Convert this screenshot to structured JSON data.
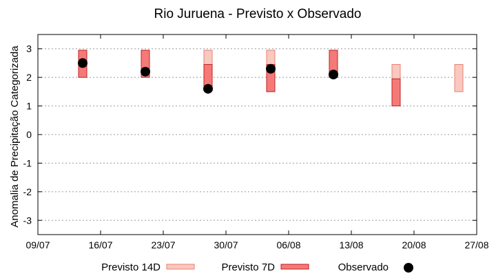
{
  "chart_data": {
    "type": "bar",
    "title": "Rio Juruena - Previsto x Observado",
    "xlabel": "",
    "ylabel": "Anomalia de Precipitação Categorizada",
    "ylim": [
      -3.5,
      3.5
    ],
    "y_ticks": [
      3,
      2,
      1,
      0,
      -1,
      -2,
      -3
    ],
    "y_tick_labels": [
      "3",
      "2",
      "1",
      "0",
      "-1",
      "-2",
      "-3"
    ],
    "x_ticks": [
      "09/07",
      "16/07",
      "23/07",
      "30/07",
      "06/08",
      "13/08",
      "20/08",
      "27/08"
    ],
    "xlim": [
      "09/07",
      "27/08"
    ],
    "grid": true,
    "legend_position": "bottom",
    "colors": {
      "previsto_14d_fill": "#f9c8c0",
      "previsto_14d_stroke": "#e88070",
      "previsto_7d_fill": "#f47a78",
      "previsto_7d_stroke": "#c02020",
      "observado": "#000000",
      "grid": "#999999"
    },
    "series": [
      {
        "name": "Previsto 14D",
        "kind": "range",
        "points": [
          {
            "x": "28/07",
            "low": 2.0,
            "high": 2.95
          },
          {
            "x": "04/08",
            "low": 2.0,
            "high": 2.95
          },
          {
            "x": "18/08",
            "low": 1.5,
            "high": 2.45
          },
          {
            "x": "25/08",
            "low": 1.5,
            "high": 2.45
          }
        ]
      },
      {
        "name": "Previsto 7D",
        "kind": "range",
        "points": [
          {
            "x": "14/07",
            "low": 2.0,
            "high": 2.95
          },
          {
            "x": "21/07",
            "low": 2.0,
            "high": 2.95
          },
          {
            "x": "28/07",
            "low": 1.55,
            "high": 2.45
          },
          {
            "x": "04/08",
            "low": 1.5,
            "high": 2.45
          },
          {
            "x": "11/08",
            "low": 2.0,
            "high": 2.95
          },
          {
            "x": "18/08",
            "low": 1.0,
            "high": 1.95
          }
        ]
      },
      {
        "name": "Observado",
        "kind": "scatter",
        "points": [
          {
            "x": "14/07",
            "y": 2.5
          },
          {
            "x": "21/07",
            "y": 2.2
          },
          {
            "x": "28/07",
            "y": 1.6
          },
          {
            "x": "04/08",
            "y": 2.3
          },
          {
            "x": "11/08",
            "y": 2.1
          }
        ]
      }
    ]
  }
}
